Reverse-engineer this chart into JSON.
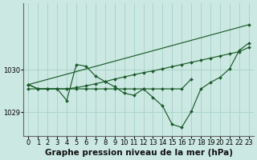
{
  "background_color": "#cce8e2",
  "grid_color": "#aad4cc",
  "line_color": "#1a5c2a",
  "xlabel": "Graphe pression niveau de la mer (hPa)",
  "xlim": [
    -0.5,
    23.5
  ],
  "ylim": [
    1028.45,
    1031.55
  ],
  "yticks": [
    1029,
    1030
  ],
  "xticks": [
    0,
    1,
    2,
    3,
    4,
    5,
    6,
    7,
    8,
    9,
    10,
    11,
    12,
    13,
    14,
    15,
    16,
    17,
    18,
    19,
    20,
    21,
    22,
    23
  ],
  "series": [
    {
      "x": [
        0,
        23
      ],
      "y": [
        1029.65,
        1031.05
      ]
    },
    {
      "x": [
        0,
        1,
        2,
        3,
        4,
        5,
        6,
        7,
        8,
        9,
        10,
        11,
        12,
        13,
        14,
        15,
        16,
        17,
        18,
        19,
        20,
        21,
        22,
        23
      ],
      "y": [
        1029.65,
        1029.55,
        1029.55,
        1029.55,
        1029.55,
        1029.58,
        1029.62,
        1029.67,
        1029.72,
        1029.78,
        1029.83,
        1029.88,
        1029.93,
        1029.97,
        1030.02,
        1030.07,
        1030.12,
        1030.17,
        1030.22,
        1030.27,
        1030.32,
        1030.37,
        1030.42,
        1030.52
      ]
    },
    {
      "x": [
        0,
        1,
        2,
        3,
        4,
        5,
        6,
        7,
        8,
        9,
        10,
        11,
        12,
        13,
        14,
        15,
        16,
        17,
        18,
        19,
        20,
        21,
        22,
        23
      ],
      "y": [
        1029.65,
        1029.55,
        1029.55,
        1029.55,
        1029.28,
        1030.12,
        1030.08,
        1029.85,
        1029.72,
        1029.6,
        1029.45,
        1029.4,
        1029.55,
        1029.35,
        1029.15,
        1028.72,
        1028.65,
        1029.02,
        1029.55,
        1029.7,
        1029.82,
        1030.02,
        1030.45,
        1030.62
      ]
    },
    {
      "x": [
        0,
        1,
        2,
        3,
        4,
        5,
        6,
        7,
        8,
        9,
        10,
        11,
        12,
        13,
        14,
        15,
        16,
        17
      ],
      "y": [
        1029.55,
        1029.55,
        1029.55,
        1029.55,
        1029.55,
        1029.55,
        1029.55,
        1029.55,
        1029.55,
        1029.55,
        1029.55,
        1029.55,
        1029.55,
        1029.55,
        1029.55,
        1029.55,
        1029.55,
        1029.78
      ]
    }
  ],
  "title_fontsize": 7.5,
  "tick_fontsize": 6.0
}
